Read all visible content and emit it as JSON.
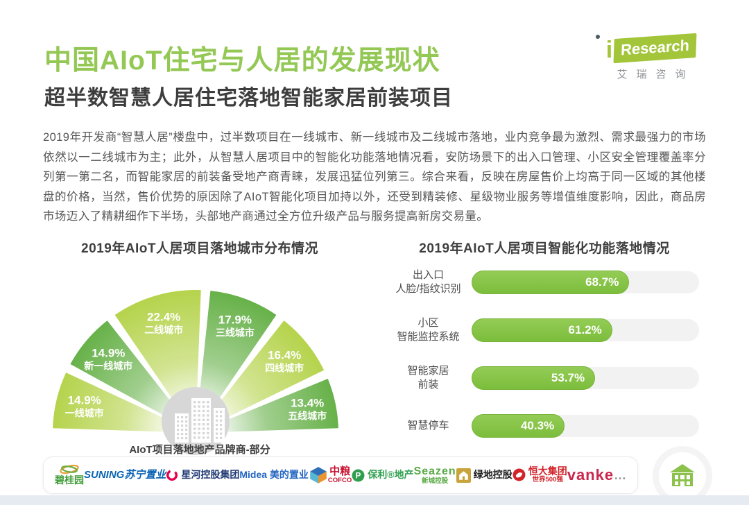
{
  "header": {
    "title": "中国AIoT住宅与人居的发展现状",
    "subtitle": "超半数智慧人居住宅落地智能家居前装项目",
    "logo": {
      "i": "i",
      "research": "Research",
      "cn": "艾瑞咨询"
    }
  },
  "paragraph": "2019年开发商“智慧人居”楼盘中，过半数项目在一线城市、新一线城市及二线城市落地，业内竞争最为激烈、需求最强力的市场依然以一二线城市为主；此外，从智慧人居项目中的智能化功能落地情况看，安防场景下的出入口管理、小区安全管理覆盖率分列第一第二名，而智能家居的前装备受地产商青睐，发展迅猛位列第三。综合来看，反映在房屋售价上均高于同一区域的其他楼盘的价格，当然，售价优势的原因除了AIoT智能化项目加持以外，还受到精装修、星级物业服务等增值维度影响，因此，商品房市场迈入了精耕细作下半场，头部地产商通过全方位升级产品与服务提高新房交易量。",
  "chart_data": [
    {
      "type": "pie",
      "variant": "semicircle-fan",
      "title": "2019年AIoT人居项目落地城市分布情况",
      "unit": "%",
      "segments": [
        {
          "label": "一线城市",
          "value": 14.9,
          "color": "#b5d34c"
        },
        {
          "label": "新一线城市",
          "value": 14.9,
          "color": "#67b149"
        },
        {
          "label": "二线城市",
          "value": 22.4,
          "color": "#b5d34c"
        },
        {
          "label": "三线城市",
          "value": 17.9,
          "color": "#67b149"
        },
        {
          "label": "四线城市",
          "value": 16.4,
          "color": "#b5d34c"
        },
        {
          "label": "五线城市",
          "value": 13.4,
          "color": "#67b149"
        }
      ],
      "center_icon": "buildings-icon"
    },
    {
      "type": "bar",
      "orientation": "horizontal",
      "title": "2019年AIoT人居项目智能化功能落地情况",
      "unit": "%",
      "xlim": [
        0,
        100
      ],
      "bar_color": "#86c344",
      "track_color": "#f2f2f2",
      "categories": [
        [
          "出入口",
          "人脸/指纹识别"
        ],
        [
          "小区",
          "智能监控系统"
        ],
        [
          "智能家居",
          "前装"
        ],
        [
          "智慧停车"
        ]
      ],
      "values": [
        68.7,
        61.2,
        53.7,
        40.3
      ]
    }
  ],
  "footer": {
    "label": "AIoT项目落地地产品牌商-部分",
    "ellipsis": "…",
    "brands": [
      {
        "id": "bgy",
        "icon": "swoosh",
        "color": "#3f9b37",
        "lines": [
          "碧桂园"
        ]
      },
      {
        "id": "suning",
        "icon": "",
        "color": "#0a64b4",
        "lines": [
          "SUNING苏宁置业"
        ]
      },
      {
        "id": "xinghe",
        "icon": "ring",
        "color": "#203a74",
        "lines": [
          "星河控股集团"
        ]
      },
      {
        "id": "midea",
        "icon": "",
        "color": "#2466c2",
        "lines": [
          "Midea 美的置业"
        ]
      },
      {
        "id": "cube",
        "icon": "cube",
        "color": "#2e6fb7",
        "lines": []
      },
      {
        "id": "cofco",
        "icon": "",
        "color": "#c8102e",
        "lines": [
          "中粮",
          "COFCO"
        ]
      },
      {
        "id": "poly",
        "icon": "p-badge",
        "color": "#2f9e4e",
        "lines": [
          "保利®地产"
        ]
      },
      {
        "id": "seazen",
        "icon": "",
        "color": "#58a943",
        "lines": [
          "Seazen",
          "新城控股"
        ]
      },
      {
        "id": "greenland",
        "icon": "gold-house",
        "color": "#1c1c1c",
        "lines": [
          "绿地控股"
        ]
      },
      {
        "id": "evergrande",
        "icon": "red-badge",
        "color": "#d2232a",
        "lines": [
          "恒大集团",
          "世界500强"
        ]
      },
      {
        "id": "vanke",
        "icon": "",
        "color": "#c9274b",
        "lines": [
          "vanke"
        ]
      }
    ]
  }
}
